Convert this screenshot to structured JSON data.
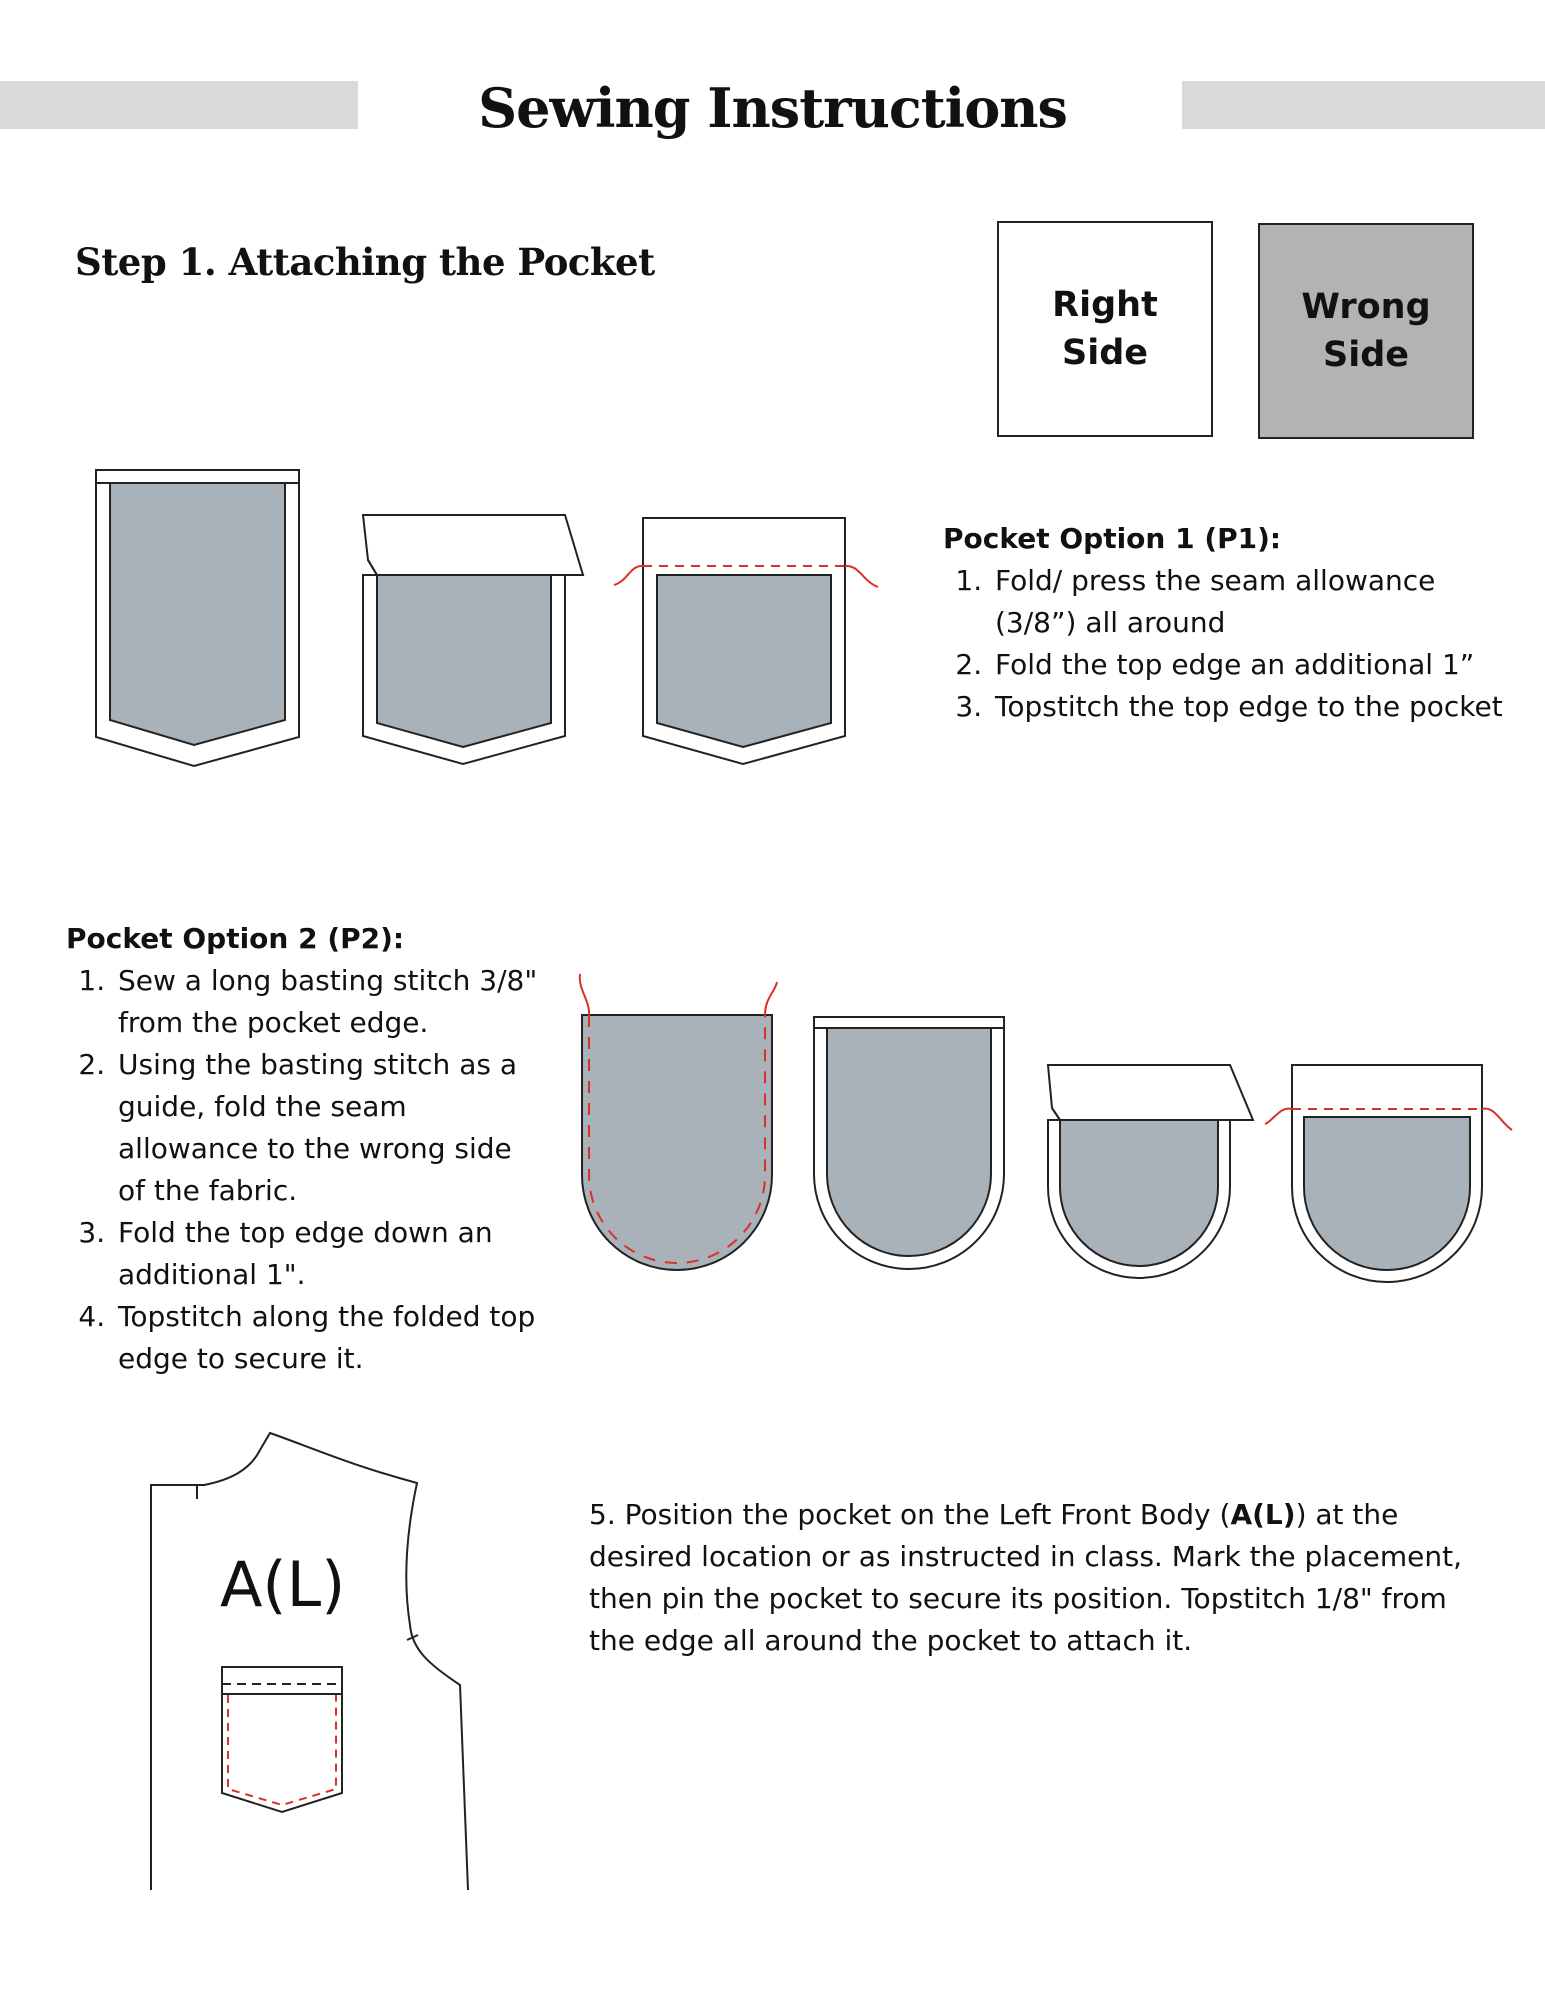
{
  "page": {
    "title": "Sewing Instructions",
    "step_title": "Step 1.  Attaching the Pocket"
  },
  "legend": {
    "right_side_line1": "Right",
    "right_side_line2": "Side",
    "wrong_side_line1": "Wrong",
    "wrong_side_line2": "Side",
    "right_color": "#ffffff",
    "wrong_color": "#b3b3b3"
  },
  "colors": {
    "fabric": "#a9b1b9",
    "stitch": "#d9302a",
    "outline": "#222222"
  },
  "pocket_option_1": {
    "heading": "Pocket Option 1 (P1):",
    "steps": [
      "Fold/ press the seam allowance (3/8”) all around",
      "Fold the top edge an additional 1”",
      "Topstitch the top edge to the pocket"
    ]
  },
  "pocket_option_2": {
    "heading": "Pocket Option 2 (P2):",
    "steps": [
      "Sew a long basting stitch 3/8\" from the pocket edge.",
      "Using the basting stitch as a guide, fold the seam allowance to the wrong side of the fabric.",
      "Fold the top edge down an additional 1\".",
      "Topstitch along the folded top edge to secure it."
    ]
  },
  "step5": {
    "prefix": "5. Position the pocket on the Left Front Body (",
    "bold": "A(L)",
    "suffix": ") at the desired location or as instructed in class. Mark the placement, then pin the pocket to secure its position. Topstitch 1/8\" from the edge all around the pocket to attach it."
  },
  "body_piece_label": "A(L)"
}
